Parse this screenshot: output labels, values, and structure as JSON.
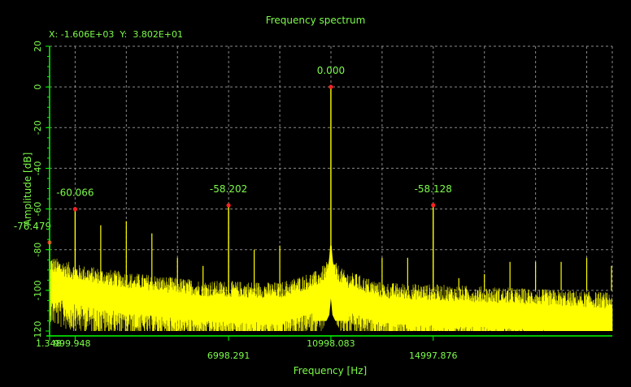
{
  "window": {
    "title": "Frequency spectrum",
    "cursor_readout": {
      "x_label": "X:",
      "x_value": "-1.606E+03",
      "y_label": "Y:",
      "y_value": "3.802E+01"
    }
  },
  "colors": {
    "background": "#000000",
    "axis": "#00ff00",
    "text": "#7CFC4A",
    "grid": "#8a8a8a",
    "trace": "#ffff00",
    "marker": "#ff2020"
  },
  "chart_data": {
    "type": "line",
    "title": "Frequency spectrum",
    "xlabel": "Frequency [Hz]",
    "ylabel": "Amplitude [dB]",
    "xlim": [
      1.348,
      22000
    ],
    "ylim": [
      -120,
      20
    ],
    "grid": true,
    "y_ticks": [
      "20",
      "0",
      "-20",
      "-40",
      "-60",
      "-80",
      "-100",
      "-120"
    ],
    "x_ticks": [
      {
        "value": 1.348,
        "label": "1.348"
      },
      {
        "value": 999.948,
        "label": "999.948"
      },
      {
        "value": 6998.291,
        "label": "6998.291"
      },
      {
        "value": 10998.083,
        "label": "10998.083"
      },
      {
        "value": 14997.876,
        "label": "14997.876"
      }
    ],
    "peaks": [
      {
        "x": 1.348,
        "y": -76.479,
        "label": "-76.479"
      },
      {
        "x": 999.948,
        "y": -60.066,
        "label": "-60.066"
      },
      {
        "x": 6998.291,
        "y": -58.202,
        "label": "-58.202"
      },
      {
        "x": 10998.083,
        "y": 0.0,
        "label": "0.000"
      },
      {
        "x": 14997.876,
        "y": -58.128,
        "label": "-58.128"
      }
    ],
    "spurs": [
      {
        "x": 2000,
        "y": -68
      },
      {
        "x": 3000,
        "y": -66
      },
      {
        "x": 4000,
        "y": -72
      },
      {
        "x": 5000,
        "y": -84
      },
      {
        "x": 6000,
        "y": -88
      },
      {
        "x": 8000,
        "y": -80
      },
      {
        "x": 9000,
        "y": -78
      },
      {
        "x": 12000,
        "y": -92
      },
      {
        "x": 13000,
        "y": -84
      },
      {
        "x": 14000,
        "y": -84
      },
      {
        "x": 16000,
        "y": -94
      },
      {
        "x": 17000,
        "y": -92
      },
      {
        "x": 18000,
        "y": -86
      },
      {
        "x": 19000,
        "y": -86
      },
      {
        "x": 20000,
        "y": -86
      },
      {
        "x": 21000,
        "y": -84
      },
      {
        "x": 22000,
        "y": -88
      }
    ],
    "noise_floor": [
      {
        "x": 0,
        "y": -97
      },
      {
        "x": 1000,
        "y": -101
      },
      {
        "x": 3000,
        "y": -105
      },
      {
        "x": 6000,
        "y": -109
      },
      {
        "x": 9000,
        "y": -110
      },
      {
        "x": 10500,
        "y": -104
      },
      {
        "x": 11000,
        "y": -98
      },
      {
        "x": 11500,
        "y": -104
      },
      {
        "x": 13000,
        "y": -110
      },
      {
        "x": 17000,
        "y": -112
      },
      {
        "x": 22000,
        "y": -115
      }
    ]
  }
}
